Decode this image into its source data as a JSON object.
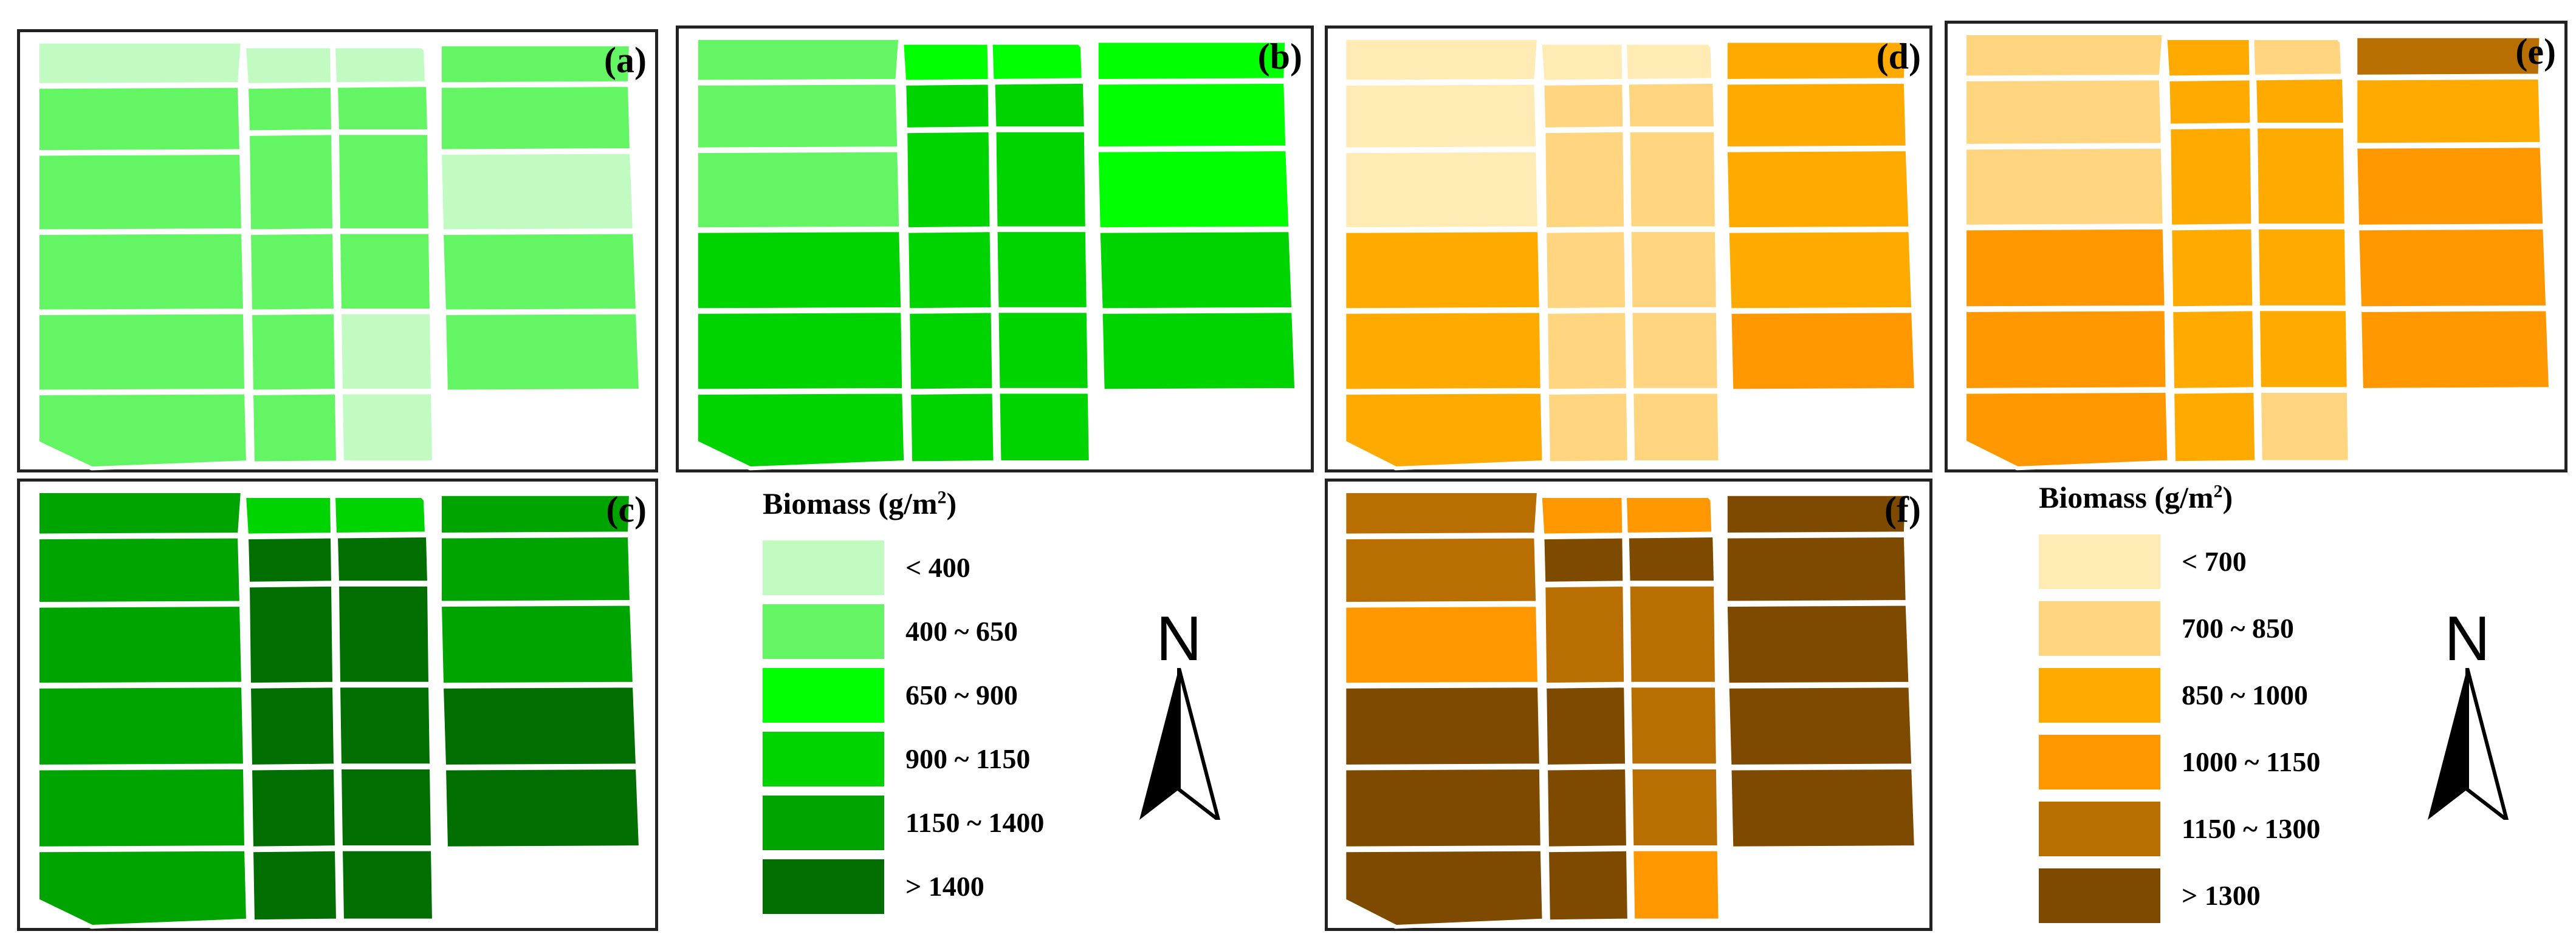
{
  "panels": {
    "a": {
      "label": "(a)",
      "fields": [
        "l1",
        "l1",
        "l1",
        "l2",
        "l2",
        "l2",
        "l2",
        "l2",
        "l2",
        "l2",
        "l2",
        "l1",
        "l2",
        "l2",
        "l2",
        "l2",
        "l2",
        "l2",
        "l1",
        "l2",
        "l2",
        "l2",
        "l1"
      ]
    },
    "b": {
      "label": "(b)",
      "fields": [
        "l2",
        "l3",
        "l3",
        "l3",
        "l2",
        "l4",
        "l4",
        "l3",
        "l2",
        "l4",
        "l4",
        "l3",
        "l4",
        "l4",
        "l4",
        "l4",
        "l4",
        "l4",
        "l4",
        "l4",
        "l4",
        "l4",
        "l4"
      ]
    },
    "c": {
      "label": "(c)",
      "fields": [
        "l5",
        "l4",
        "l4",
        "l5",
        "l5",
        "l6",
        "l6",
        "l5",
        "l5",
        "l6",
        "l6",
        "l5",
        "l5",
        "l6",
        "l6",
        "l6",
        "l5",
        "l6",
        "l6",
        "l6",
        "l5",
        "l6",
        "l6"
      ]
    },
    "d": {
      "label": "(d)",
      "fields": [
        "o1",
        "o1",
        "o1",
        "o3",
        "o1",
        "o2",
        "o2",
        "o3",
        "o1",
        "o2",
        "o2",
        "o3",
        "o3",
        "o2",
        "o2",
        "o3",
        "o3",
        "o2",
        "o2",
        "o4",
        "o3",
        "o2",
        "o2"
      ]
    },
    "e": {
      "label": "(e)",
      "fields": [
        "o2",
        "o3",
        "o2",
        "o5",
        "o2",
        "o3",
        "o3",
        "o3",
        "o2",
        "o3",
        "o3",
        "o4",
        "o4",
        "o3",
        "o3",
        "o4",
        "o4",
        "o3",
        "o3",
        "o4",
        "o4",
        "o3",
        "o2"
      ]
    },
    "f": {
      "label": "(f)",
      "fields": [
        "o5",
        "o4",
        "o4",
        "o6",
        "o5",
        "o6",
        "o6",
        "o6",
        "o4",
        "o5",
        "o5",
        "o6",
        "o6",
        "o6",
        "o5",
        "o6",
        "o6",
        "o6",
        "o5",
        "o6",
        "o6",
        "o6",
        "o4"
      ]
    }
  },
  "legend_green": {
    "title": "Biomass (g/m",
    "title_sup": "2",
    "title_end": ")",
    "items": [
      {
        "key": "l1",
        "label": "< 400",
        "color": "#c2fbc2"
      },
      {
        "key": "l2",
        "label": "400 ~ 650",
        "color": "#63f563"
      },
      {
        "key": "l3",
        "label": "650 ~ 900",
        "color": "#00ff00"
      },
      {
        "key": "l4",
        "label": "900 ~ 1150",
        "color": "#00d400"
      },
      {
        "key": "l5",
        "label": "1150 ~ 1400",
        "color": "#00a400"
      },
      {
        "key": "l6",
        "label": "> 1400",
        "color": "#006e00"
      }
    ]
  },
  "legend_orange": {
    "title": "Biomass (g/m",
    "title_sup": "2",
    "title_end": ")",
    "items": [
      {
        "key": "o1",
        "label": "< 700",
        "color": "#ffebb3"
      },
      {
        "key": "o2",
        "label": "700 ~ 850",
        "color": "#ffd580"
      },
      {
        "key": "o3",
        "label": "850 ~ 1000",
        "color": "#ffaa00"
      },
      {
        "key": "o4",
        "label": "1000 ~ 1150",
        "color": "#ff9800"
      },
      {
        "key": "o5",
        "label": "1150 ~ 1300",
        "color": "#b86e00"
      },
      {
        "key": "o6",
        "label": "> 1300",
        "color": "#7d4a00"
      }
    ]
  },
  "north_arrows": [
    {
      "label": "N"
    },
    {
      "label": "N"
    }
  ]
}
